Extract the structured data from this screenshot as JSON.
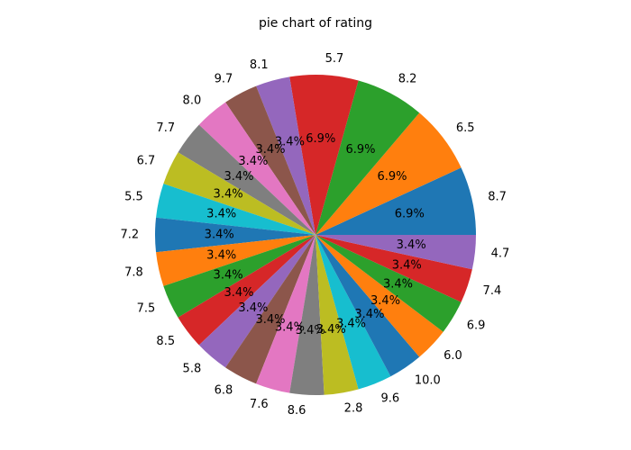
{
  "chart_data": {
    "type": "pie",
    "title": "pie chart of rating",
    "categories": [
      "8.7",
      "6.5",
      "8.2",
      "5.7",
      "8.1",
      "9.7",
      "8.0",
      "7.7",
      "6.7",
      "5.5",
      "7.2",
      "7.8",
      "7.5",
      "8.5",
      "5.8",
      "6.8",
      "7.6",
      "8.6",
      "2.8",
      "9.6",
      "10.0",
      "6.0",
      "6.9",
      "7.4",
      "4.7"
    ],
    "values": [
      2,
      2,
      2,
      2,
      1,
      1,
      1,
      1,
      1,
      1,
      1,
      1,
      1,
      1,
      1,
      1,
      1,
      1,
      1,
      1,
      1,
      1,
      1,
      1,
      1
    ],
    "percent_labels": [
      "6.9%",
      "6.9%",
      "6.9%",
      "6.9%",
      "3.4%",
      "3.4%",
      "3.4%",
      "3.4%",
      "3.4%",
      "3.4%",
      "3.4%",
      "3.4%",
      "3.4%",
      "3.4%",
      "3.4%",
      "3.4%",
      "3.4%",
      "3.4%",
      "3.4%",
      "3.4%",
      "3.4%",
      "3.4%",
      "3.4%",
      "3.4%",
      "3.4%"
    ],
    "colors": [
      "#1f77b4",
      "#ff7f0e",
      "#2ca02c",
      "#d62728",
      "#9467bd",
      "#8c564b",
      "#e377c2",
      "#7f7f7f",
      "#bcbd22",
      "#17becf"
    ]
  }
}
